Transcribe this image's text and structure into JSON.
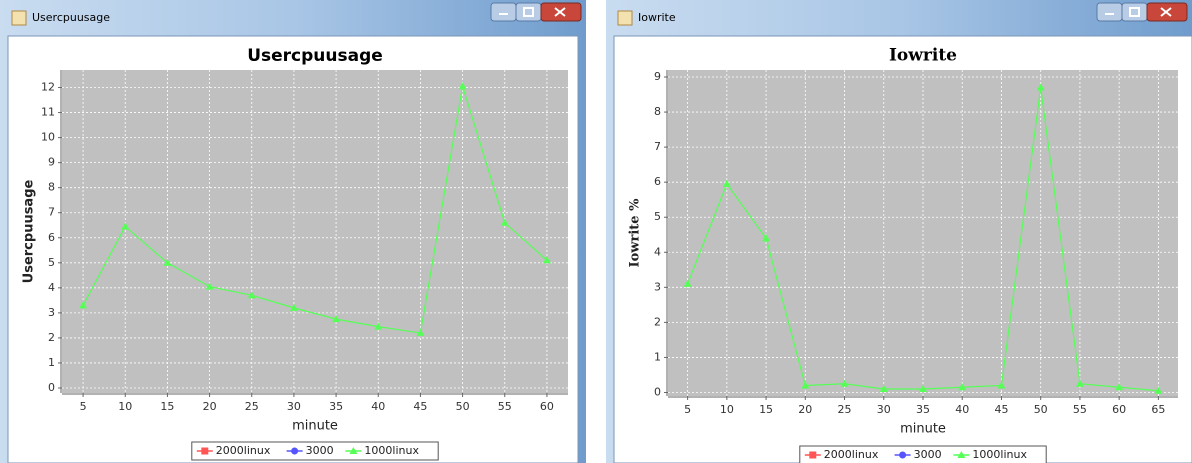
{
  "chart_data": [
    {
      "type": "line",
      "window_title": "Usercpuusage",
      "title": "Usercpuusage",
      "x_label": "minute",
      "y_label": "Usercpuusage",
      "categories": [
        "5",
        "10",
        "15",
        "20",
        "25",
        "30",
        "35",
        "40",
        "45",
        "50",
        "55",
        "60"
      ],
      "series": [
        {
          "name": "2000linux",
          "color": "#ff5555",
          "values": [
            null,
            null,
            null,
            null,
            null,
            null,
            null,
            null,
            null,
            null,
            null,
            null
          ]
        },
        {
          "name": "3000",
          "color": "#5555ff",
          "values": [
            null,
            null,
            null,
            null,
            null,
            null,
            null,
            null,
            null,
            null,
            null,
            null
          ]
        },
        {
          "name": "1000linux",
          "color": "#55ff55",
          "values": [
            3.3,
            6.45,
            5.0,
            4.05,
            3.7,
            3.2,
            2.75,
            2.45,
            2.2,
            12.05,
            6.6,
            5.1
          ]
        }
      ],
      "ylim": [
        -0.2,
        12.7
      ],
      "yticks": [
        0,
        1,
        2,
        3,
        4,
        5,
        6,
        7,
        8,
        9,
        10,
        11,
        12
      ],
      "grid": true,
      "legend": "bottom"
    },
    {
      "type": "line",
      "window_title": "Iowrite",
      "title": "Iowrite",
      "x_label": "minute",
      "y_label": "Iowrite %",
      "categories": [
        "5",
        "10",
        "15",
        "20",
        "25",
        "30",
        "35",
        "40",
        "45",
        "50",
        "55",
        "60",
        "65"
      ],
      "series": [
        {
          "name": "2000linux",
          "color": "#ff5555",
          "values": [
            null,
            null,
            null,
            null,
            null,
            null,
            null,
            null,
            null,
            null,
            null,
            null,
            null
          ]
        },
        {
          "name": "3000",
          "color": "#5555ff",
          "values": [
            null,
            null,
            null,
            null,
            null,
            null,
            null,
            null,
            null,
            null,
            null,
            null,
            null
          ]
        },
        {
          "name": "1000linux",
          "color": "#55ff55",
          "values": [
            3.1,
            5.95,
            4.4,
            0.2,
            0.25,
            0.1,
            0.1,
            0.15,
            0.2,
            8.7,
            0.25,
            0.15,
            0.05
          ]
        }
      ],
      "ylim": [
        -0.1,
        9.2
      ],
      "yticks": [
        0,
        1,
        2,
        3,
        4,
        5,
        6,
        7,
        8,
        9
      ],
      "grid": true,
      "legend": "bottom"
    }
  ]
}
